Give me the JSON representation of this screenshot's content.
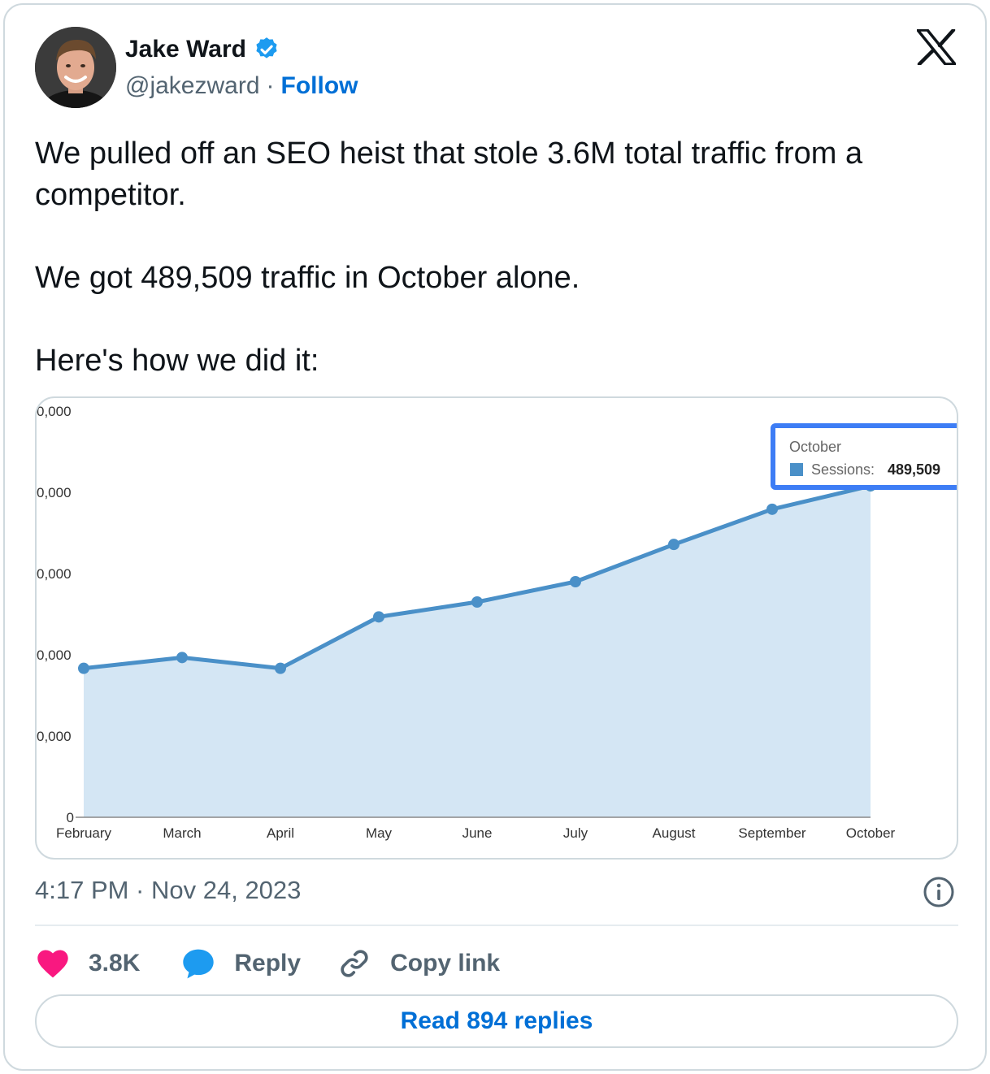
{
  "author": {
    "name": "Jake Ward",
    "handle": "@jakezward",
    "follow_label": "Follow",
    "verified": true
  },
  "icons": {
    "brand": "x-logo-icon",
    "verified": "verified-badge-icon",
    "info": "info-icon",
    "like": "heart-icon",
    "reply": "speech-bubble-icon",
    "copy": "link-icon"
  },
  "colors": {
    "accent": "#006fd6",
    "like": "#f91880",
    "reply": "#1d9bf0",
    "verified": "#1d9bf0",
    "chart_line": "#4a90c8",
    "chart_fill": "#d4e6f4",
    "tooltip_border": "#3d7df5"
  },
  "tweet": {
    "line1": "We pulled off an SEO heist that stole 3.6M total traffic from a competitor.",
    "line2": "We got 489,509 traffic in October alone.",
    "line3": "Here's how we did it:"
  },
  "timestamp": "4:17 PM · Nov 24, 2023",
  "actions": {
    "like_count": "3.8K",
    "reply_label": "Reply",
    "copy_label": "Copy link"
  },
  "read_replies_label": "Read 894 replies",
  "chart_data": {
    "type": "area",
    "categories": [
      "February",
      "March",
      "April",
      "May",
      "June",
      "July",
      "August",
      "September",
      "October"
    ],
    "series": [
      {
        "name": "Sessions",
        "values": [
          220000,
          236000,
          220000,
          296000,
          318000,
          348000,
          403000,
          455000,
          489509
        ]
      }
    ],
    "y_ticks": [
      "0",
      "0,000",
      "0,000",
      "0,000",
      "0,000",
      "0,000"
    ],
    "ylim": [
      0,
      600000
    ],
    "tooltip": {
      "title": "October",
      "label": "Sessions",
      "value": "489,509"
    }
  }
}
